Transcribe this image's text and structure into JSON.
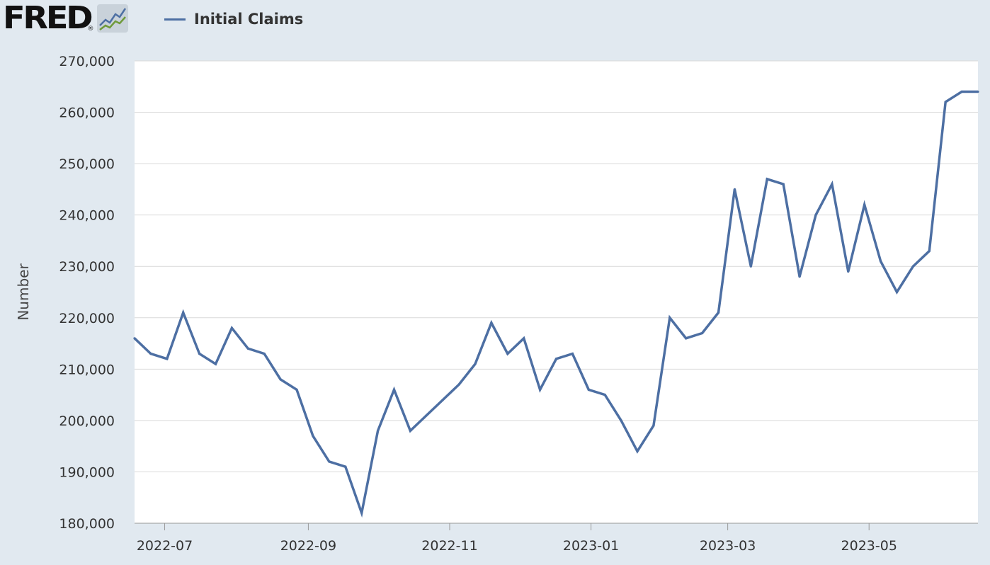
{
  "header": {
    "logo_text": "FRED",
    "logo_registered": "®",
    "logo_icon": "chart-line-icon"
  },
  "colors": {
    "page_background": "#e1e9f0",
    "plot_background": "#ffffff",
    "series_line": "#4d6fa3",
    "grid": "#d9d9d9"
  },
  "chart_data": {
    "type": "line",
    "title": "",
    "xlabel": "",
    "ylabel": "Number",
    "ylim": [
      180000,
      270000
    ],
    "xlim": [
      "2022-06-18",
      "2023-06-17"
    ],
    "grid": true,
    "legend_position": "top-left",
    "y_ticks": [
      {
        "value": 180000,
        "label": "180,000"
      },
      {
        "value": 190000,
        "label": "190,000"
      },
      {
        "value": 200000,
        "label": "200,000"
      },
      {
        "value": 210000,
        "label": "210,000"
      },
      {
        "value": 220000,
        "label": "220,000"
      },
      {
        "value": 230000,
        "label": "230,000"
      },
      {
        "value": 240000,
        "label": "240,000"
      },
      {
        "value": 250000,
        "label": "250,000"
      },
      {
        "value": 260000,
        "label": "260,000"
      },
      {
        "value": 270000,
        "label": "270,000"
      }
    ],
    "x_ticks": [
      {
        "value": "2022-07-01",
        "label": "2022-07"
      },
      {
        "value": "2022-09-01",
        "label": "2022-09"
      },
      {
        "value": "2022-11-01",
        "label": "2022-11"
      },
      {
        "value": "2023-01-01",
        "label": "2023-01"
      },
      {
        "value": "2023-03-01",
        "label": "2023-03"
      },
      {
        "value": "2023-05-01",
        "label": "2023-05"
      }
    ],
    "series": [
      {
        "name": "Initial Claims",
        "x": [
          "2022-06-18",
          "2022-06-25",
          "2022-07-02",
          "2022-07-09",
          "2022-07-16",
          "2022-07-23",
          "2022-07-30",
          "2022-08-06",
          "2022-08-13",
          "2022-08-20",
          "2022-08-27",
          "2022-09-03",
          "2022-09-10",
          "2022-09-17",
          "2022-09-24",
          "2022-10-01",
          "2022-10-08",
          "2022-10-15",
          "2022-10-22",
          "2022-10-29",
          "2022-11-05",
          "2022-11-12",
          "2022-11-19",
          "2022-11-26",
          "2022-12-03",
          "2022-12-10",
          "2022-12-17",
          "2022-12-24",
          "2022-12-31",
          "2023-01-07",
          "2023-01-14",
          "2023-01-21",
          "2023-01-28",
          "2023-02-04",
          "2023-02-11",
          "2023-02-18",
          "2023-02-25",
          "2023-03-04",
          "2023-03-11",
          "2023-03-18",
          "2023-03-25",
          "2023-04-01",
          "2023-04-08",
          "2023-04-15",
          "2023-04-22",
          "2023-04-29",
          "2023-05-06",
          "2023-05-13",
          "2023-05-20",
          "2023-05-27",
          "2023-06-03",
          "2023-06-10",
          "2023-06-17"
        ],
        "values": [
          216000,
          213000,
          212000,
          221000,
          213000,
          211000,
          218000,
          214000,
          213000,
          208000,
          206000,
          197000,
          192000,
          191000,
          182000,
          198000,
          206000,
          198000,
          201000,
          204000,
          207000,
          211000,
          219000,
          213000,
          216000,
          206000,
          212000,
          213000,
          206000,
          205000,
          200000,
          194000,
          199000,
          220000,
          216000,
          217000,
          221000,
          245000,
          230000,
          247000,
          246000,
          228000,
          240000,
          246000,
          229000,
          242000,
          231000,
          225000,
          230000,
          233000,
          262000,
          264000,
          264000
        ]
      }
    ]
  }
}
